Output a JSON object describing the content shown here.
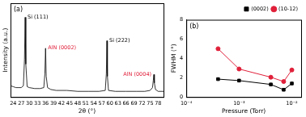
{
  "chart_data": [
    {
      "type": "line",
      "title": "(a)",
      "x_label": "2θ (°)",
      "y_label": "Intensity (a.u.)",
      "x": [
        23,
        24,
        25,
        26,
        27,
        27.8,
        28.2,
        28.45,
        28.7,
        29.2,
        30,
        32,
        34,
        35.4,
        35.8,
        36.05,
        36.3,
        36.8,
        38,
        40,
        44,
        48,
        52,
        56,
        58.3,
        58.7,
        58.9,
        59.1,
        59.5,
        62,
        66,
        70,
        73,
        75,
        75.9,
        76.2,
        76.4,
        76.6,
        77,
        78,
        80
      ],
      "values": [
        12,
        11,
        10,
        10,
        10,
        12,
        40,
        85,
        35,
        11,
        10,
        9,
        9,
        10,
        25,
        52,
        22,
        10,
        8,
        7,
        7,
        6,
        6,
        6,
        7,
        25,
        60,
        22,
        7,
        6,
        6,
        6,
        6,
        7,
        10,
        18,
        24,
        15,
        8,
        6,
        6
      ],
      "color": "#000000",
      "xlim": [
        23,
        80
      ],
      "xticks": [
        24,
        27,
        30,
        33,
        36,
        39,
        42,
        45,
        48,
        51,
        54,
        57,
        60,
        63,
        66,
        69,
        72,
        75,
        78
      ],
      "ylim": [
        0,
        100
      ],
      "tick_labels": "x",
      "grid": false,
      "annotations": [
        {
          "text": "Si (111)",
          "x": 28.45,
          "color": "#000000"
        },
        {
          "text": "AlN (0002)",
          "x": 36.05,
          "color": "#e0203a"
        },
        {
          "text": "Si (222)",
          "x": 58.9,
          "color": "#000000"
        },
        {
          "text": "AlN (0004)",
          "x": 76.4,
          "color": "#e0203a"
        }
      ]
    },
    {
      "type": "line",
      "title": "(b)",
      "x_label": "Pressure (Torr)",
      "y_label": "FWHM (°)",
      "x": [
        0.0004,
        0.001,
        0.004,
        0.007,
        0.01
      ],
      "series": [
        {
          "name": "(0002)",
          "color": "#000000",
          "marker": "square",
          "values": [
            1.85,
            1.7,
            1.3,
            0.75,
            1.4
          ]
        },
        {
          "name": "(10-12)",
          "color": "#e0203a",
          "marker": "circle",
          "values": [
            5.0,
            2.9,
            2.05,
            1.6,
            2.8
          ]
        }
      ],
      "log": "x",
      "xlim": [
        0.0001,
        0.015
      ],
      "xticks": [
        {
          "value": 0.0001,
          "label": "10⁻⁴"
        },
        {
          "value": 0.001,
          "label": "10⁻³"
        },
        {
          "value": 0.01,
          "label": "10⁻²"
        }
      ],
      "ylim": [
        0,
        8
      ],
      "yticks": [
        0,
        2,
        4,
        6,
        8
      ],
      "grid": false,
      "legend": "top-right"
    }
  ]
}
